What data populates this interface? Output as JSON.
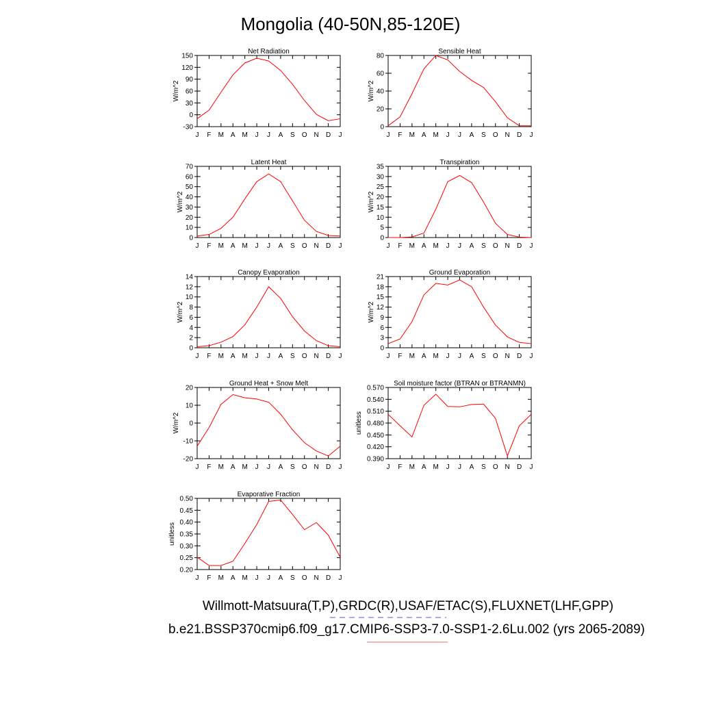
{
  "title": "Mongolia (40-50N,85-120E)",
  "footer": {
    "line1": "Willmott-Matsuura(T,P),GRDC(R),USAF/ETAC(S),FLUXNET(LHF,GPP)",
    "line2": "b.e21.BSSP370cmip6.f09_g17.CMIP6-SSP3-7.0-SSP1-2.6Lu.002 (yrs 2065-2089)",
    "underline_colors": [
      "#7777dd",
      "#ee8888"
    ]
  },
  "line_color": "#ff0000",
  "chart_data": [
    {
      "type": "line",
      "title": "Net Radiation",
      "ylabel": "W/m^2",
      "categories": [
        "J",
        "F",
        "M",
        "A",
        "M",
        "J",
        "J",
        "A",
        "S",
        "O",
        "N",
        "D",
        "J"
      ],
      "ylim": [
        -30,
        150
      ],
      "yticks": [
        "-30",
        "0",
        "30",
        "60",
        "90",
        "120",
        "150"
      ],
      "ytick_values": [
        -30,
        0,
        30,
        60,
        90,
        120,
        150
      ],
      "values": [
        -10,
        12,
        57,
        101,
        131,
        143,
        136,
        112,
        77,
        36,
        1,
        -15,
        -10
      ]
    },
    {
      "type": "line",
      "title": "Sensible Heat",
      "ylabel": "W/m^2",
      "categories": [
        "J",
        "F",
        "M",
        "A",
        "M",
        "J",
        "J",
        "A",
        "S",
        "O",
        "N",
        "D",
        "J"
      ],
      "ylim": [
        0,
        80
      ],
      "yticks": [
        "0",
        "20",
        "40",
        "60",
        "80"
      ],
      "ytick_values": [
        0,
        20,
        40,
        60,
        80
      ],
      "values": [
        1,
        11,
        37,
        65,
        80,
        75,
        62,
        52,
        44,
        28,
        10,
        1,
        1
      ]
    },
    {
      "type": "line",
      "title": "Latent Heat",
      "ylabel": "W/m^2",
      "categories": [
        "J",
        "F",
        "M",
        "A",
        "M",
        "J",
        "J",
        "A",
        "S",
        "O",
        "N",
        "D",
        "J"
      ],
      "ylim": [
        0,
        70
      ],
      "yticks": [
        "0",
        "10",
        "20",
        "30",
        "40",
        "50",
        "60",
        "70"
      ],
      "ytick_values": [
        0,
        10,
        20,
        30,
        40,
        50,
        60,
        70
      ],
      "values": [
        1.5,
        3,
        9,
        20,
        38,
        55,
        62.5,
        55,
        36,
        17,
        6,
        2,
        1.5
      ]
    },
    {
      "type": "line",
      "title": "Transpiration",
      "ylabel": "W/m^2",
      "categories": [
        "J",
        "F",
        "M",
        "A",
        "M",
        "J",
        "J",
        "A",
        "S",
        "O",
        "N",
        "D",
        "J"
      ],
      "ylim": [
        0,
        35
      ],
      "yticks": [
        "0",
        "5",
        "10",
        "15",
        "20",
        "25",
        "30",
        "35"
      ],
      "ytick_values": [
        0,
        5,
        10,
        15,
        20,
        25,
        30,
        35
      ],
      "values": [
        0,
        0,
        0.3,
        2.2,
        14,
        27.5,
        30.5,
        27,
        17.5,
        7,
        1.5,
        0.2,
        0
      ]
    },
    {
      "type": "line",
      "title": "Canopy Evaporation",
      "ylabel": "W/m^2",
      "categories": [
        "J",
        "F",
        "M",
        "A",
        "M",
        "J",
        "J",
        "A",
        "S",
        "O",
        "N",
        "D",
        "J"
      ],
      "ylim": [
        0,
        14
      ],
      "yticks": [
        "0",
        "2",
        "4",
        "6",
        "8",
        "10",
        "12",
        "14"
      ],
      "ytick_values": [
        0,
        2,
        4,
        6,
        8,
        10,
        12,
        14
      ],
      "values": [
        0.2,
        0.4,
        1.1,
        2.2,
        4.5,
        8,
        12,
        9.7,
        6.1,
        3.3,
        1.4,
        0.4,
        0.2
      ]
    },
    {
      "type": "line",
      "title": "Ground Evaporation",
      "ylabel": "W/m^2",
      "categories": [
        "J",
        "F",
        "M",
        "A",
        "M",
        "J",
        "J",
        "A",
        "S",
        "O",
        "N",
        "D",
        "J"
      ],
      "ylim": [
        0,
        21
      ],
      "yticks": [
        "0",
        "3",
        "6",
        "9",
        "12",
        "15",
        "18",
        "21"
      ],
      "ytick_values": [
        0,
        3,
        6,
        9,
        12,
        15,
        18,
        21
      ],
      "values": [
        1.2,
        2.6,
        7.7,
        15.6,
        19,
        18.5,
        20,
        18,
        12,
        6.7,
        3.2,
        1.6,
        1.2
      ]
    },
    {
      "type": "line",
      "title": "Ground Heat + Snow Melt",
      "ylabel": "W/m^2",
      "categories": [
        "J",
        "F",
        "M",
        "A",
        "M",
        "J",
        "J",
        "A",
        "S",
        "O",
        "N",
        "D",
        "J"
      ],
      "ylim": [
        -20,
        20
      ],
      "yticks": [
        "-20",
        "-10",
        "0",
        "10",
        "20"
      ],
      "ytick_values": [
        -20,
        -10,
        0,
        10,
        20
      ],
      "values": [
        -13,
        -2.5,
        10.5,
        16,
        14.2,
        13.5,
        11.7,
        5,
        -3.8,
        -11,
        -15.7,
        -18.5,
        -13
      ]
    },
    {
      "type": "line",
      "title": "Soil moisture factor (BTRAN or BTRANMN)",
      "ylabel": "unitless",
      "categories": [
        "J",
        "F",
        "M",
        "A",
        "M",
        "J",
        "J",
        "A",
        "S",
        "O",
        "N",
        "D",
        "J"
      ],
      "ylim": [
        0.39,
        0.57
      ],
      "yticks": [
        "0.390",
        "0.420",
        "0.450",
        "0.480",
        "0.510",
        "0.540",
        "0.570"
      ],
      "ytick_values": [
        0.39,
        0.42,
        0.45,
        0.48,
        0.51,
        0.54,
        0.57
      ],
      "values": [
        0.502,
        0.473,
        0.445,
        0.525,
        0.553,
        0.522,
        0.521,
        0.527,
        0.528,
        0.492,
        0.397,
        0.473,
        0.502
      ]
    },
    {
      "type": "line",
      "title": "Evaporative Fraction",
      "ylabel": "unitless",
      "categories": [
        "J",
        "F",
        "M",
        "A",
        "M",
        "J",
        "J",
        "A",
        "S",
        "O",
        "N",
        "D",
        "J"
      ],
      "ylim": [
        0.2,
        0.5
      ],
      "yticks": [
        "0.20",
        "0.25",
        "0.30",
        "0.35",
        "0.40",
        "0.45",
        "0.50"
      ],
      "ytick_values": [
        0.2,
        0.25,
        0.3,
        0.35,
        0.4,
        0.45,
        0.5
      ],
      "values": [
        0.252,
        0.217,
        0.217,
        0.235,
        0.31,
        0.39,
        0.487,
        0.493,
        0.432,
        0.368,
        0.398,
        0.345,
        0.252
      ]
    }
  ]
}
